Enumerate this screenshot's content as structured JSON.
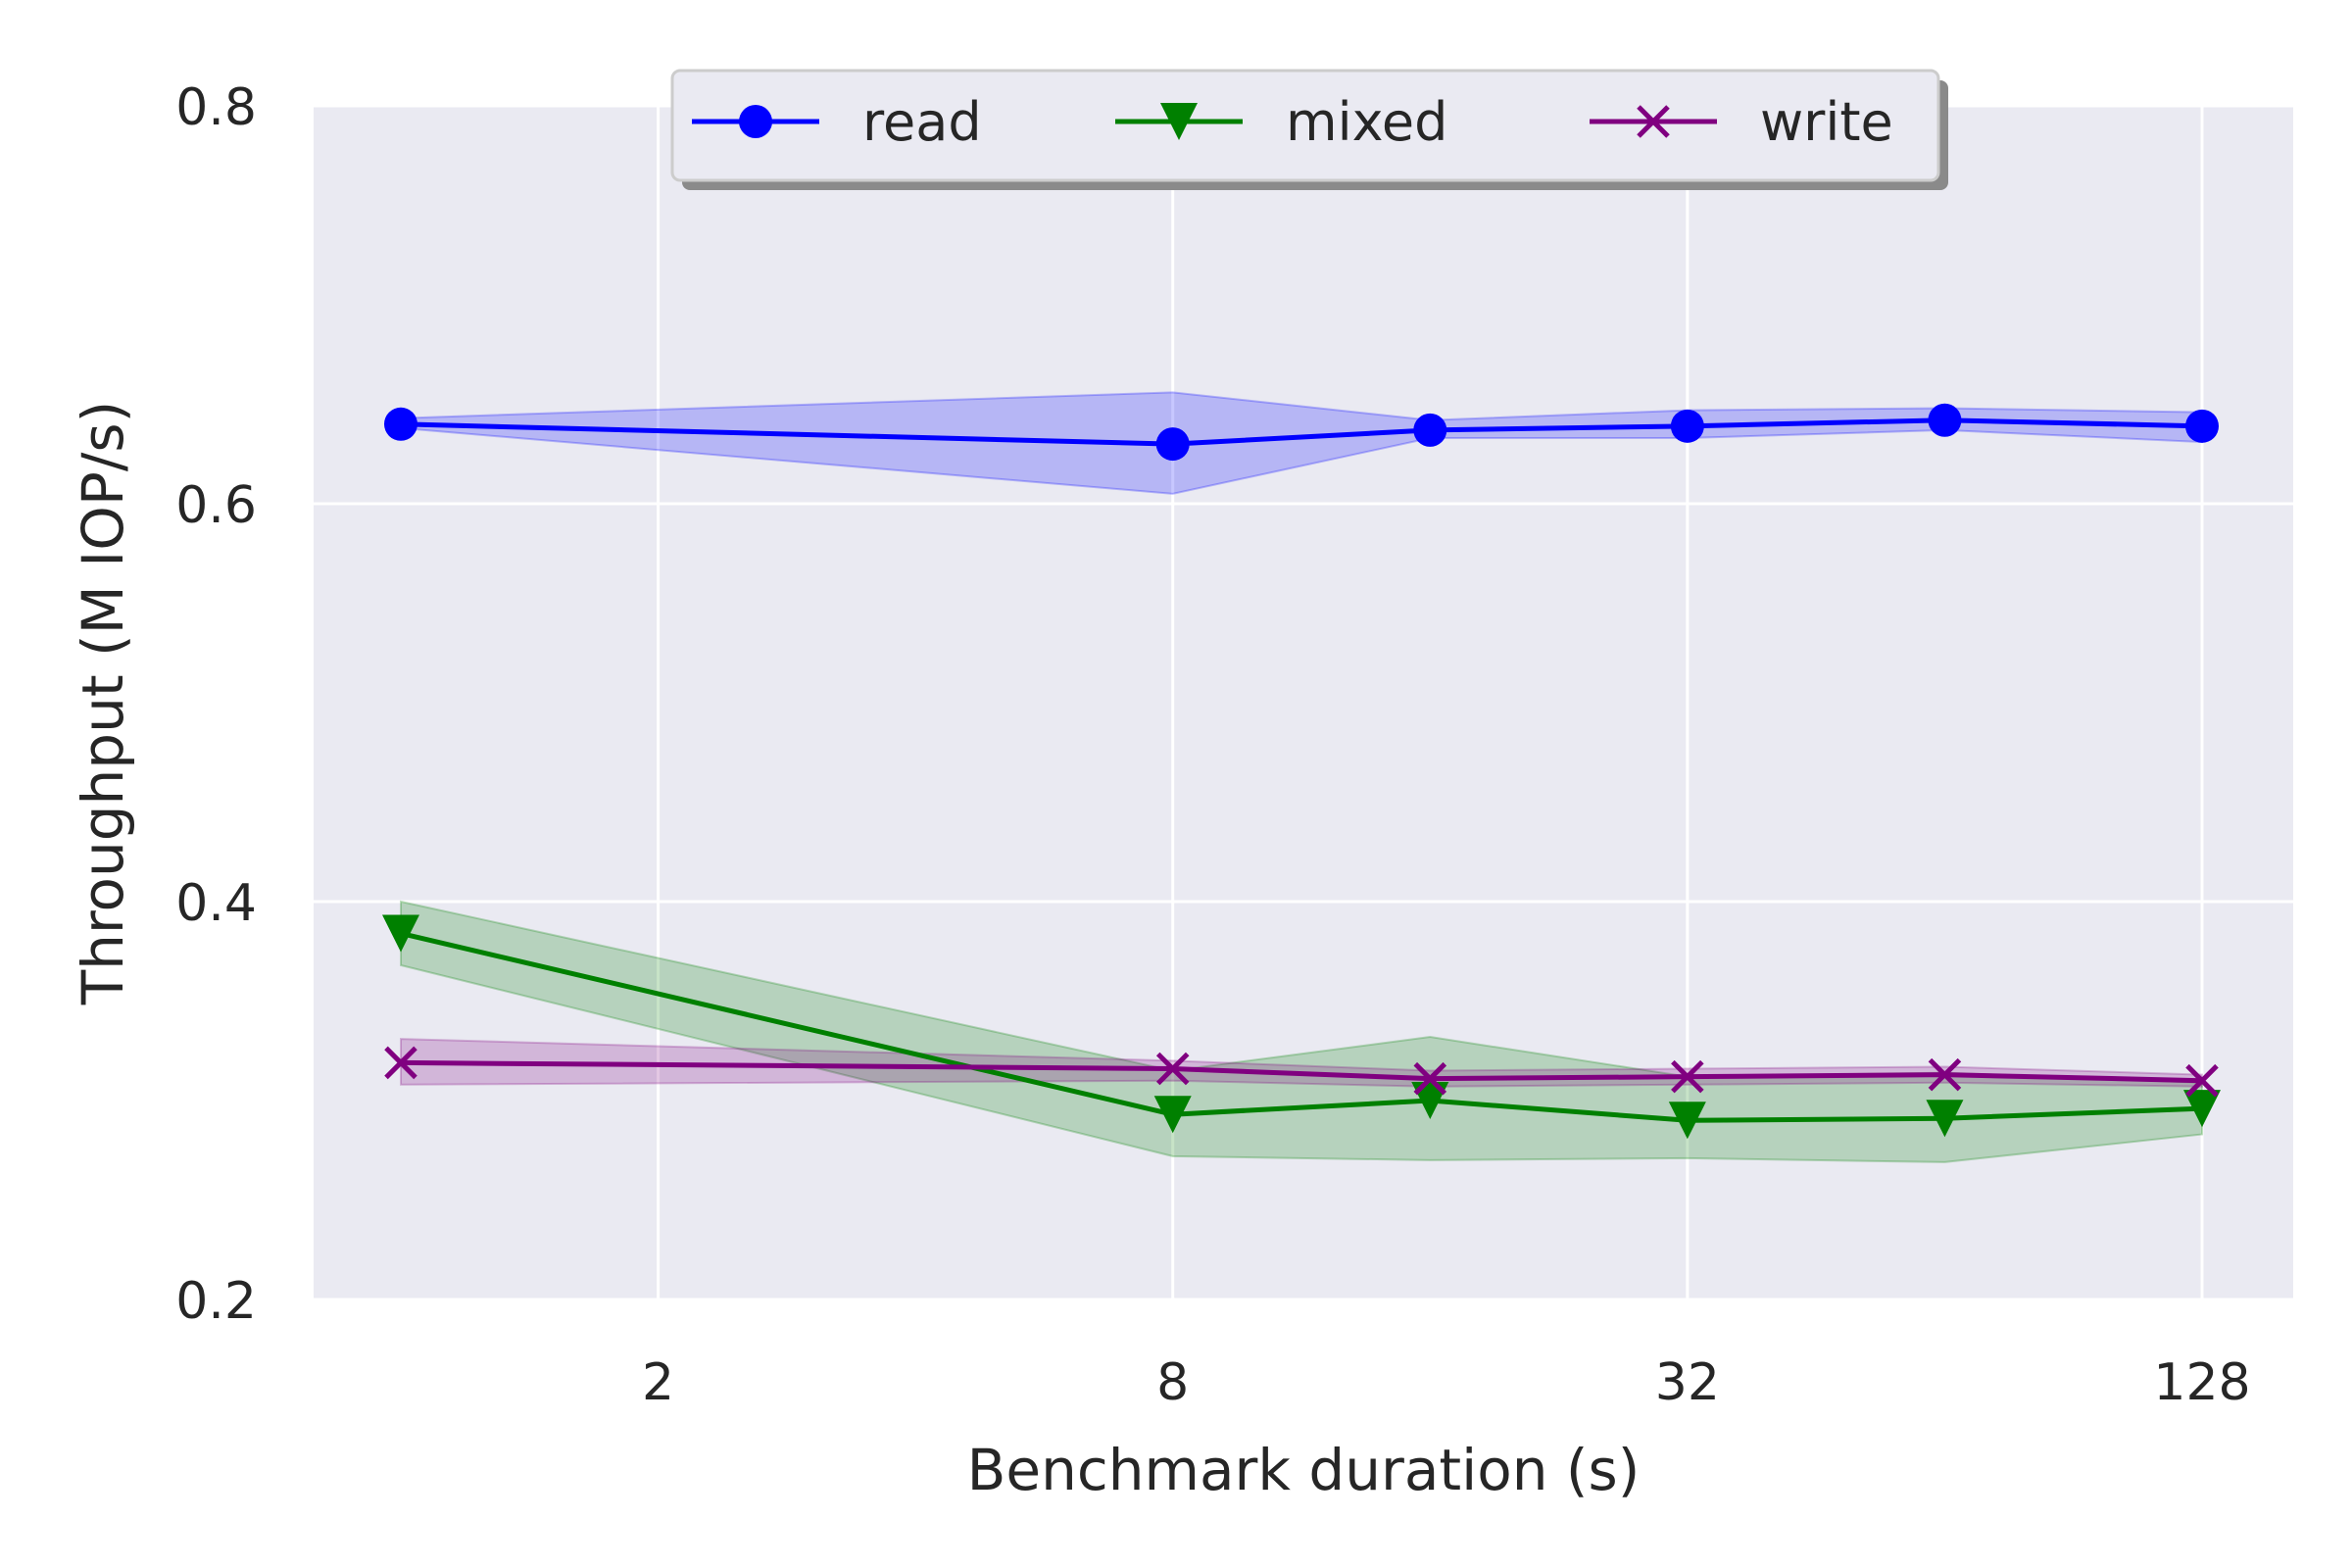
{
  "chart_data": {
    "type": "line",
    "xlabel": "Benchmark duration (s)",
    "ylabel": "Throughput (M IOP/s)",
    "x_scale": "log2",
    "x": [
      1,
      8,
      16,
      32,
      64,
      128
    ],
    "xticks": [
      2,
      8,
      32,
      128
    ],
    "xtick_labels": [
      "2",
      "8",
      "32",
      "128"
    ],
    "yticks": [
      0.2,
      0.4,
      0.6,
      0.8
    ],
    "ytick_labels": [
      "0.2",
      "0.4",
      "0.6",
      "0.8"
    ],
    "ylim": [
      0.2,
      0.8
    ],
    "grid": true,
    "legend_position": "top-center",
    "series": [
      {
        "name": "read",
        "color": "#0000ff",
        "marker": "circle",
        "values": [
          0.64,
          0.63,
          0.637,
          0.639,
          0.642,
          0.639
        ],
        "lower": [
          0.638,
          0.605,
          0.633,
          0.633,
          0.637,
          0.631
        ],
        "upper": [
          0.643,
          0.656,
          0.642,
          0.647,
          0.648,
          0.646
        ]
      },
      {
        "name": "mixed",
        "color": "#008000",
        "marker": "triangle-down",
        "values": [
          0.384,
          0.293,
          0.3,
          0.29,
          0.291,
          0.296
        ],
        "lower": [
          0.368,
          0.272,
          0.27,
          0.271,
          0.269,
          0.283
        ],
        "upper": [
          0.4,
          0.315,
          0.332,
          0.312,
          0.314,
          0.309
        ]
      },
      {
        "name": "write",
        "color": "#800080",
        "marker": "x",
        "values": [
          0.319,
          0.316,
          0.311,
          0.312,
          0.313,
          0.31
        ],
        "lower": [
          0.308,
          0.31,
          0.307,
          0.308,
          0.309,
          0.307
        ],
        "upper": [
          0.331,
          0.32,
          0.315,
          0.316,
          0.317,
          0.313
        ]
      }
    ]
  }
}
